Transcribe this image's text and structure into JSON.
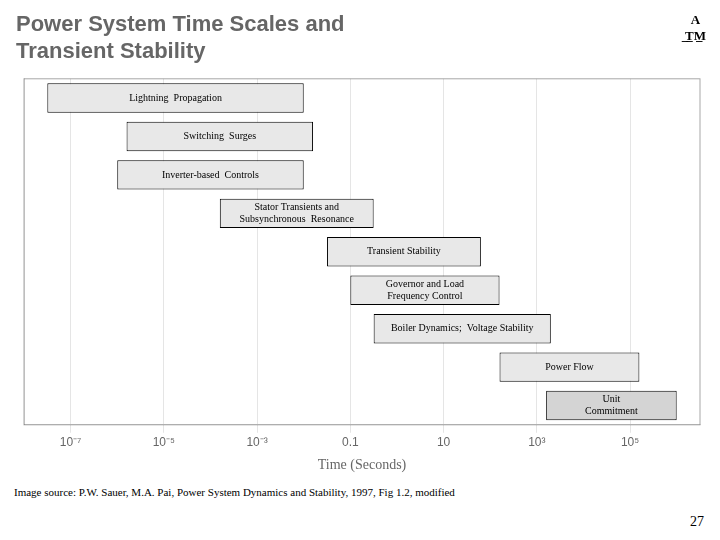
{
  "chart_data": {
    "type": "bar",
    "orientation": "horizontal",
    "title": [
      "Power System Time Scales and",
      "Transient Stability"
    ],
    "x_label": "Time (Seconds)",
    "log": "x",
    "categories": [
      "Lightning  Propagation",
      "Switching  Surges",
      "Inverter-based  Controls",
      [
        "Stator Transients and",
        "Subsynchronous  Resonance"
      ],
      "Transient Stability",
      [
        "Governor and Load",
        "Frequency Control"
      ],
      "Boiler Dynamics;  Voltage Stability",
      "Power Flow",
      [
        "Unit",
        "Commitment"
      ]
    ],
    "values": [
      [
        3.162277660168379e-08,
        0.01
      ],
      [
        1.584893192461114e-06,
        0.01584893192461113
      ],
      [
        1e-06,
        0.01
      ],
      [
        0.0001584893192461114,
        0.31622776601683794
      ],
      [
        0.03162277660168379,
        63.09573444801933
      ],
      [
        0.1,
        158.48931924611142
      ],
      [
        0.31622776601683794,
        1995.2623149688789
      ],
      [
        158.48931924611142,
        158489.3192461114
      ],
      [
        1584.893192461114,
        1000000
      ]
    ],
    "colors": [
      "#e8e8e8",
      "#e8e8e8",
      "#e8e8e8",
      "#e8e8e8",
      "#e8e8e8",
      "#e8e8e8",
      "#e8e8e8",
      "#e8e8e8",
      "#d4d4d4"
    ],
    "xlim": [
      1e-08,
      3162277.6601683795
    ],
    "xticks": [
      {
        "value": 1e-07,
        "label": "10⁻⁷"
      },
      {
        "value": 1e-05,
        "label": "10⁻⁵"
      },
      {
        "value": 0.001,
        "label": "10⁻³"
      },
      0.1,
      10,
      {
        "value": 1000,
        "label": "10³"
      },
      {
        "value": 100000,
        "label": "10⁵"
      }
    ],
    "grid": true,
    "tick_labels": "x",
    "annotations": [
      "A",
      "̲T̲M̲",
      "Image source:  P.W. Sauer, M.A. Pai, Power System Dynamics and Stability, 1997, Fig 1.2, modified",
      "27"
    ]
  }
}
